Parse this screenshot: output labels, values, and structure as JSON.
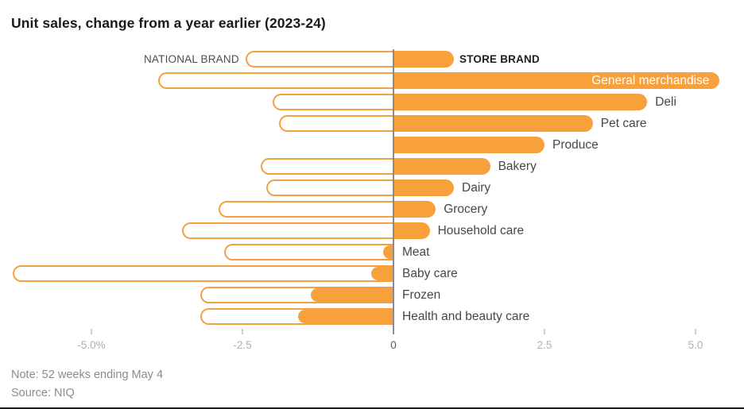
{
  "title": "Unit sales, change from a year earlier (2023-24)",
  "note": "Note: 52 weeks ending May 4",
  "source": "Source: NIQ",
  "legend": {
    "national_label": "NATIONAL BRAND",
    "store_label": "STORE BRAND",
    "national_sample_value": -2.45,
    "store_sample_value": 1.0
  },
  "colors": {
    "bar_fill_orange": "#f8a13c",
    "bar_outline_orange": "#f2a13e",
    "zero_line_gray": "#8c8c8c",
    "title_dark": "#1a1a1a",
    "label_gray": "#474747",
    "axis_gray": "#afafaf",
    "note_gray": "#8c8c8c"
  },
  "chart_data": {
    "type": "bar",
    "variant": "horizontal-diverging-paired",
    "title": "Unit sales, change from a year earlier (2023-24)",
    "unit": "%",
    "categories": [
      "General merchandise",
      "Deli",
      "Pet care",
      "Produce",
      "Bakery",
      "Dairy",
      "Grocery",
      "Household care",
      "Meat",
      "Baby care",
      "Frozen",
      "Health and beauty care"
    ],
    "series": [
      {
        "name": "NATIONAL BRAND",
        "style": "outline",
        "values": [
          -3.9,
          -2.0,
          -1.9,
          null,
          -2.2,
          -2.1,
          -2.9,
          -3.5,
          -2.8,
          -6.3,
          -3.2,
          -3.2
        ]
      },
      {
        "name": "STORE BRAND",
        "style": "fill",
        "values": [
          5.4,
          4.2,
          3.3,
          2.5,
          1.6,
          1.0,
          0.7,
          0.6,
          -0.2,
          -0.4,
          -1.4,
          -1.6
        ]
      }
    ],
    "x_ticks": [
      {
        "label": "-5.0%",
        "value": -5.0
      },
      {
        "label": "-2.5",
        "value": -2.5
      },
      {
        "label": "0",
        "value": 0
      },
      {
        "label": "2.5",
        "value": 2.5
      },
      {
        "label": "5.0",
        "value": 5.0
      }
    ],
    "xlim": [
      -6.5,
      5.8
    ],
    "grid": false,
    "legend_position": "top-inline",
    "labels_inside_bar": [
      "General merchandise"
    ],
    "note": "Note: 52 weeks ending May 4",
    "source": "Source: NIQ"
  }
}
